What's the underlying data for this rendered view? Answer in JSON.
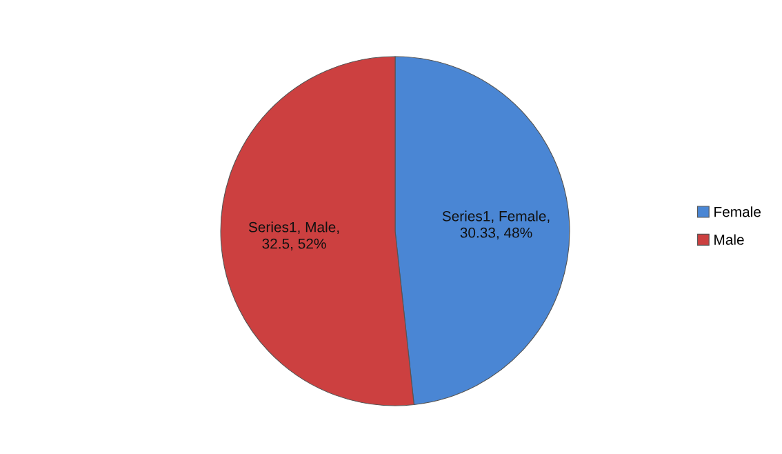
{
  "chart_data": {
    "type": "pie",
    "categories": [
      "Female",
      "Male"
    ],
    "values": [
      30.33,
      32.5
    ],
    "colors": [
      "#4a86d4",
      "#cc4040"
    ],
    "value_labels": [
      "Series1, Female, 30.33, 48%",
      "Series1, Male, 32.5, 52%"
    ],
    "legend": "right"
  }
}
